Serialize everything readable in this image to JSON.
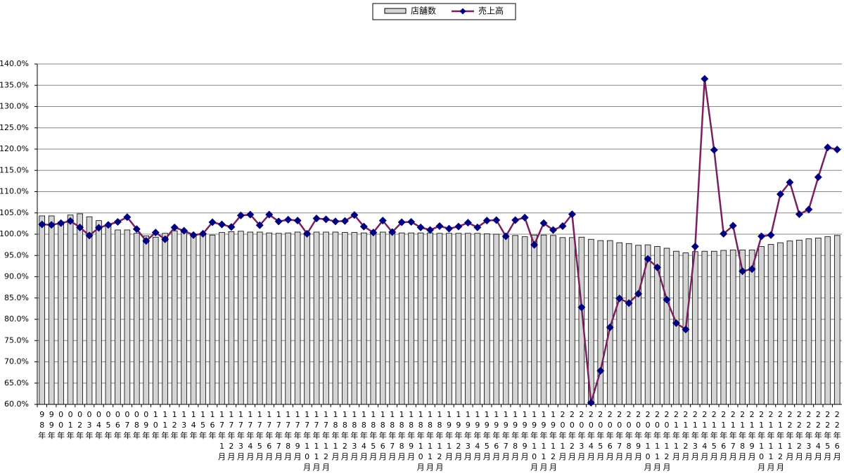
{
  "chart_data": {
    "type": "bar-line",
    "categories": [
      "98年",
      "99年",
      "00年",
      "01年",
      "02年",
      "03年",
      "04年",
      "05年",
      "06年",
      "07年",
      "08年",
      "09年",
      "10年",
      "11年",
      "12年",
      "13年",
      "14年",
      "15年",
      "16年",
      "17年1月",
      "17年2月",
      "17年3月",
      "17年4月",
      "17年5月",
      "17年6月",
      "17年7月",
      "17年8月",
      "17年9月",
      "17年10月",
      "17年11月",
      "17年12月",
      "18年1月",
      "18年2月",
      "18年3月",
      "18年4月",
      "18年5月",
      "18年6月",
      "18年7月",
      "18年8月",
      "18年9月",
      "18年10月",
      "18年11月",
      "18年12月",
      "19年1月",
      "19年2月",
      "19年3月",
      "19年4月",
      "19年5月",
      "19年6月",
      "19年7月",
      "19年8月",
      "19年9月",
      "19年10月",
      "19年11月",
      "19年12月",
      "20年1月",
      "20年2月",
      "20年3月",
      "20年4月",
      "20年5月",
      "20年6月",
      "20年7月",
      "20年8月",
      "20年9月",
      "20年10月",
      "20年11月",
      "20年12月",
      "21年1月",
      "21年2月",
      "21年3月",
      "21年4月",
      "21年5月",
      "21年6月",
      "21年7月",
      "21年8月",
      "21年9月",
      "21年10月",
      "21年11月",
      "21年12月",
      "22年1月",
      "22年2月",
      "22年3月",
      "22年4月",
      "22年5月",
      "22年6月"
    ],
    "series": [
      {
        "name": "店舗数",
        "type": "bar",
        "color": "#d4d4d4",
        "values": [
          104.3,
          104.3,
          102.9,
          104.5,
          104.8,
          104.1,
          103.2,
          102.1,
          101.0,
          101.0,
          100.2,
          99.6,
          99.3,
          100.2,
          100.8,
          100.5,
          99.6,
          99.9,
          99.8,
          100.4,
          100.6,
          100.7,
          100.5,
          100.5,
          100.3,
          100.2,
          100.3,
          100.5,
          100.4,
          100.5,
          100.5,
          100.5,
          100.4,
          100.4,
          100.3,
          100.5,
          100.5,
          100.5,
          100.3,
          100.3,
          100.3,
          100.3,
          100.2,
          100.2,
          100.2,
          100.2,
          100.2,
          100.1,
          100.0,
          99.7,
          99.7,
          99.4,
          99.8,
          99.8,
          99.7,
          99.2,
          99.2,
          99.3,
          98.8,
          98.5,
          98.5,
          98.0,
          97.8,
          97.4,
          97.5,
          97.1,
          96.7,
          96.0,
          95.6,
          95.9,
          96.0,
          96.0,
          96.2,
          96.3,
          96.3,
          96.3,
          97.1,
          97.6,
          98.0,
          98.4,
          98.6,
          98.9,
          99.1,
          99.4,
          99.7
        ]
      },
      {
        "name": "売上高",
        "type": "line",
        "color": "#7a2060",
        "marker_color": "#00007f",
        "values": [
          102.3,
          102.2,
          102.6,
          103.1,
          101.6,
          99.7,
          101.5,
          102.2,
          102.9,
          104.0,
          101.2,
          98.4,
          100.4,
          98.8,
          101.6,
          100.8,
          99.8,
          100.1,
          102.8,
          102.3,
          101.7,
          104.4,
          104.6,
          102.1,
          104.6,
          103.0,
          103.4,
          103.2,
          100.1,
          103.7,
          103.5,
          103.0,
          103.1,
          104.5,
          101.8,
          100.4,
          103.2,
          100.5,
          102.8,
          102.9,
          101.6,
          101.0,
          101.9,
          101.3,
          101.8,
          102.7,
          101.6,
          103.2,
          103.3,
          99.5,
          103.3,
          103.9,
          97.5,
          102.6,
          101.0,
          101.9,
          104.7,
          82.8,
          60.4,
          67.9,
          78.1,
          84.9,
          83.8,
          86.0,
          94.2,
          92.2,
          84.6,
          79.1,
          77.6,
          97.1,
          136.5,
          119.8,
          100.1,
          102.0,
          91.3,
          91.8,
          99.5,
          99.8,
          109.4,
          112.2,
          104.7,
          105.8,
          113.4,
          120.4,
          119.9
        ]
      }
    ],
    "ylim": [
      60,
      140
    ],
    "yticks": [
      {
        "value": 60,
        "label": "60.0%"
      },
      {
        "value": 65,
        "label": "65.0%"
      },
      {
        "value": 70,
        "label": "70.0%"
      },
      {
        "value": 75,
        "label": "75.0%"
      },
      {
        "value": 80,
        "label": "80.0%"
      },
      {
        "value": 85,
        "label": "85.0%"
      },
      {
        "value": 90,
        "label": "90.0%"
      },
      {
        "value": 95,
        "label": "95.0%"
      },
      {
        "value": 100,
        "label": "100.0%"
      },
      {
        "value": 105,
        "label": "105.0%"
      },
      {
        "value": 110,
        "label": "110.0%"
      },
      {
        "value": 115,
        "label": "115.0%"
      },
      {
        "value": 120,
        "label": "120.0%"
      },
      {
        "value": 125,
        "label": "125.0%"
      },
      {
        "value": 130,
        "label": "130.0%"
      },
      {
        "value": 135,
        "label": "135.0%"
      },
      {
        "value": 140,
        "label": "140.0%"
      }
    ],
    "grid": true,
    "legend": "top"
  }
}
